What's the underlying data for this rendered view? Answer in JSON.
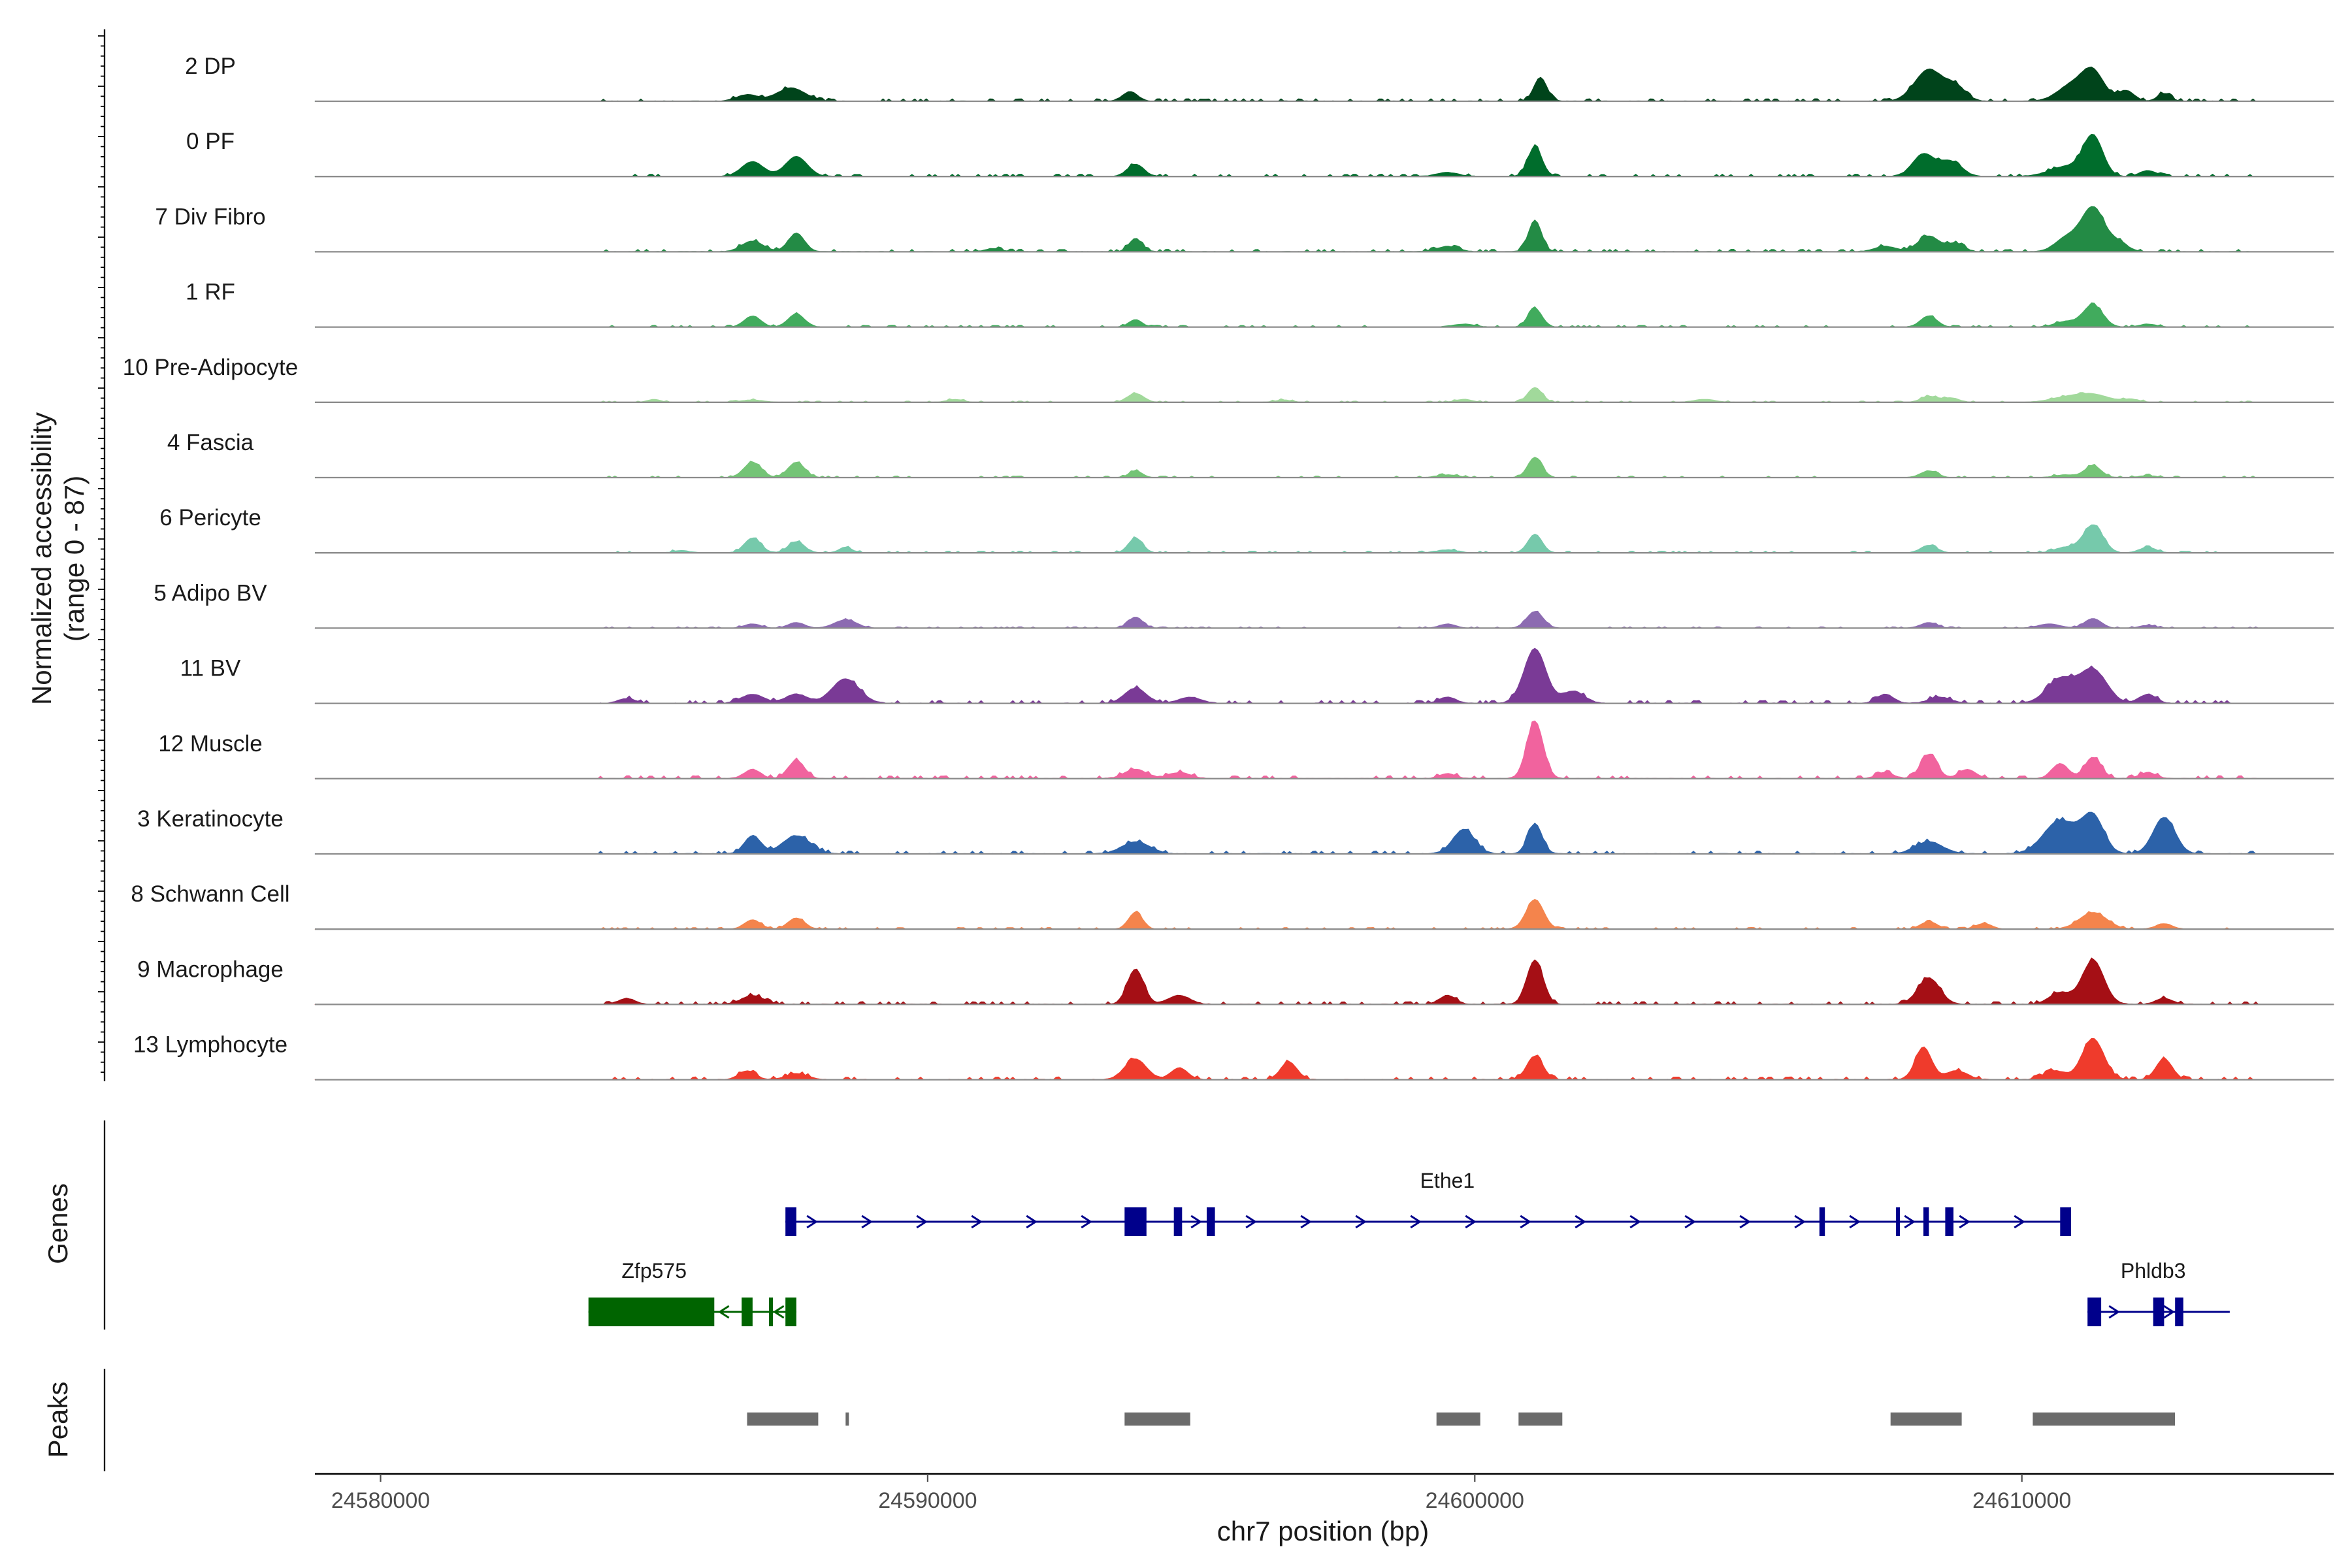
{
  "chart_data": {
    "type": "area",
    "title": "",
    "xlabel": "chr7 position (bp)",
    "ylabel": "Normalized accessibility (range 0 - 87)",
    "xlim": [
      24578800,
      24615700
    ],
    "ylim": [
      0,
      87
    ],
    "x_ticks": [
      24580000,
      24590000,
      24600000,
      24610000
    ],
    "x_tick_labels": [
      "24580000",
      "24590000",
      "24600000",
      "24610000"
    ],
    "panel_labels": {
      "genes": "Genes",
      "peaks": "Peaks"
    },
    "tracks": [
      {
        "name": "2 DP",
        "color": "#00441b",
        "scale": 0.85,
        "peaks": [
          [
            24586700,
            12,
            200
          ],
          [
            24587500,
            25,
            260
          ],
          [
            24593700,
            18,
            140
          ],
          [
            24601200,
            45,
            120
          ],
          [
            24608300,
            60,
            260
          ],
          [
            24608800,
            25,
            180
          ],
          [
            24610900,
            30,
            250
          ],
          [
            24611300,
            55,
            200
          ],
          [
            24611900,
            20,
            150
          ],
          [
            24612600,
            15,
            120
          ]
        ]
      },
      {
        "name": "0 PF",
        "color": "#006d2c",
        "scale": 0.8,
        "peaks": [
          [
            24586800,
            30,
            200
          ],
          [
            24587600,
            40,
            200
          ],
          [
            24593800,
            25,
            150
          ],
          [
            24599500,
            8,
            200
          ],
          [
            24601100,
            60,
            130
          ],
          [
            24608200,
            45,
            200
          ],
          [
            24608700,
            30,
            200
          ],
          [
            24611300,
            80,
            180
          ],
          [
            24610800,
            20,
            300
          ],
          [
            24612300,
            12,
            150
          ]
        ]
      },
      {
        "name": "7 Div Fibro",
        "color": "#238b45",
        "scale": 0.85,
        "peaks": [
          [
            24586800,
            20,
            200
          ],
          [
            24587600,
            35,
            150
          ],
          [
            24591200,
            6,
            150
          ],
          [
            24593800,
            25,
            120
          ],
          [
            24599500,
            10,
            200
          ],
          [
            24601100,
            60,
            120
          ],
          [
            24607500,
            10,
            200
          ],
          [
            24608300,
            30,
            200
          ],
          [
            24608800,
            15,
            150
          ],
          [
            24610800,
            25,
            200
          ],
          [
            24611300,
            85,
            220
          ],
          [
            24611800,
            15,
            150
          ]
        ]
      },
      {
        "name": "1 RF",
        "color": "#41ab5d",
        "scale": 0.6,
        "peaks": [
          [
            24586800,
            30,
            150
          ],
          [
            24587600,
            35,
            150
          ],
          [
            24593800,
            20,
            120
          ],
          [
            24599800,
            8,
            200
          ],
          [
            24601100,
            50,
            130
          ],
          [
            24608300,
            30,
            150
          ],
          [
            24610800,
            15,
            200
          ],
          [
            24611300,
            60,
            180
          ],
          [
            24612300,
            8,
            150
          ]
        ]
      },
      {
        "name": "10 Pre-Adipocyte",
        "color": "#a1d99b",
        "scale": 0.48,
        "peaks": [
          [
            24585000,
            10,
            120
          ],
          [
            24586800,
            8,
            200
          ],
          [
            24590500,
            10,
            150
          ],
          [
            24593800,
            30,
            150
          ],
          [
            24596500,
            8,
            150
          ],
          [
            24599800,
            10,
            150
          ],
          [
            24601100,
            50,
            130
          ],
          [
            24604200,
            10,
            200
          ],
          [
            24608300,
            20,
            150
          ],
          [
            24608700,
            15,
            150
          ],
          [
            24610800,
            15,
            300
          ],
          [
            24611300,
            25,
            300
          ],
          [
            24612000,
            10,
            150
          ]
        ]
      },
      {
        "name": "4 Fascia",
        "color": "#74c476",
        "scale": 0.55,
        "peaks": [
          [
            24586800,
            45,
            160
          ],
          [
            24587600,
            45,
            150
          ],
          [
            24593800,
            20,
            120
          ],
          [
            24599500,
            8,
            200
          ],
          [
            24601100,
            60,
            130
          ],
          [
            24608300,
            20,
            150
          ],
          [
            24610800,
            8,
            200
          ],
          [
            24611300,
            35,
            150
          ],
          [
            24612300,
            6,
            150
          ]
        ]
      },
      {
        "name": "6 Pericyte",
        "color": "#76c9ab",
        "scale": 0.6,
        "peaks": [
          [
            24585500,
            6,
            150
          ],
          [
            24586800,
            40,
            150
          ],
          [
            24587600,
            30,
            150
          ],
          [
            24588500,
            15,
            120
          ],
          [
            24593800,
            40,
            130
          ],
          [
            24599500,
            8,
            200
          ],
          [
            24601100,
            50,
            130
          ],
          [
            24608300,
            20,
            150
          ],
          [
            24610800,
            15,
            200
          ],
          [
            24611300,
            75,
            180
          ],
          [
            24612300,
            15,
            150
          ]
        ]
      },
      {
        "name": "5 Adipo BV",
        "color": "#8c6bb1",
        "scale": 0.45,
        "peaks": [
          [
            24586800,
            15,
            150
          ],
          [
            24587600,
            20,
            150
          ],
          [
            24588500,
            30,
            200
          ],
          [
            24593800,
            40,
            130
          ],
          [
            24599500,
            15,
            150
          ],
          [
            24601100,
            60,
            150
          ],
          [
            24608300,
            20,
            150
          ],
          [
            24610500,
            15,
            200
          ],
          [
            24611300,
            35,
            150
          ],
          [
            24612300,
            10,
            150
          ]
        ]
      },
      {
        "name": "11 BV",
        "color": "#7a3a96",
        "scale": 0.98,
        "peaks": [
          [
            24584500,
            8,
            150
          ],
          [
            24586800,
            15,
            200
          ],
          [
            24587600,
            15,
            200
          ],
          [
            24588500,
            40,
            250
          ],
          [
            24593800,
            25,
            200
          ],
          [
            24594800,
            10,
            200
          ],
          [
            24599500,
            10,
            150
          ],
          [
            24601100,
            90,
            200
          ],
          [
            24601800,
            20,
            200
          ],
          [
            24607500,
            15,
            150
          ],
          [
            24608500,
            10,
            200
          ],
          [
            24610700,
            40,
            250
          ],
          [
            24611300,
            55,
            250
          ],
          [
            24612300,
            15,
            150
          ]
        ]
      },
      {
        "name": "12 Muscle",
        "color": "#f1639e",
        "scale": 0.98,
        "peaks": [
          [
            24586800,
            15,
            150
          ],
          [
            24587600,
            30,
            150
          ],
          [
            24593800,
            15,
            200
          ],
          [
            24594600,
            10,
            200
          ],
          [
            24599500,
            8,
            150
          ],
          [
            24601100,
            95,
            150
          ],
          [
            24607500,
            10,
            150
          ],
          [
            24608300,
            40,
            150
          ],
          [
            24609000,
            15,
            150
          ],
          [
            24610700,
            25,
            150
          ],
          [
            24611300,
            35,
            150
          ],
          [
            24612300,
            10,
            150
          ]
        ]
      },
      {
        "name": "3 Keratinocyte",
        "color": "#2c62a9",
        "scale": 0.98,
        "peaks": [
          [
            24586800,
            30,
            150
          ],
          [
            24587600,
            30,
            250
          ],
          [
            24593800,
            20,
            250
          ],
          [
            24599800,
            40,
            200
          ],
          [
            24601100,
            50,
            130
          ],
          [
            24608300,
            20,
            250
          ],
          [
            24610700,
            55,
            300
          ],
          [
            24611300,
            60,
            200
          ],
          [
            24612600,
            60,
            200
          ]
        ]
      },
      {
        "name": "8 Schwann Cell",
        "color": "#f4844c",
        "scale": 0.6,
        "peaks": [
          [
            24586800,
            25,
            150
          ],
          [
            24587600,
            30,
            150
          ],
          [
            24593800,
            45,
            130
          ],
          [
            24601100,
            80,
            160
          ],
          [
            24608300,
            20,
            150
          ],
          [
            24609300,
            15,
            150
          ],
          [
            24611300,
            45,
            250
          ],
          [
            24612600,
            15,
            150
          ]
        ]
      },
      {
        "name": "9 Macrophage",
        "color": "#a50f15",
        "scale": 0.95,
        "peaks": [
          [
            24584500,
            10,
            150
          ],
          [
            24586800,
            15,
            200
          ],
          [
            24593800,
            60,
            150
          ],
          [
            24594600,
            15,
            200
          ],
          [
            24599500,
            15,
            150
          ],
          [
            24601100,
            75,
            150
          ],
          [
            24608300,
            45,
            200
          ],
          [
            24610700,
            20,
            200
          ],
          [
            24611300,
            75,
            200
          ],
          [
            24612600,
            10,
            150
          ]
        ]
      },
      {
        "name": "13 Lymphocyte",
        "color": "#ef3b2c",
        "scale": 0.95,
        "peaks": [
          [
            24586700,
            15,
            150
          ],
          [
            24587600,
            10,
            200
          ],
          [
            24593800,
            35,
            200
          ],
          [
            24594600,
            20,
            150
          ],
          [
            24596600,
            30,
            150
          ],
          [
            24601100,
            40,
            150
          ],
          [
            24608200,
            55,
            150
          ],
          [
            24608800,
            15,
            200
          ],
          [
            24610600,
            15,
            200
          ],
          [
            24611300,
            70,
            200
          ],
          [
            24612600,
            35,
            150
          ]
        ]
      }
    ],
    "genes": [
      {
        "name": "Ethe1",
        "strand": "+",
        "color": "#00008b",
        "row": 1,
        "start": 24587400,
        "end": 24610900,
        "label_pos": 24599500,
        "exons": [
          [
            24587400,
            24587600,
            "wide"
          ],
          [
            24593600,
            24594000,
            "wide"
          ],
          [
            24594500,
            24594650,
            "wide"
          ],
          [
            24595100,
            24595250,
            "wide"
          ],
          [
            24606300,
            24606400,
            "narrow"
          ],
          [
            24607700,
            24607760,
            "narrow"
          ],
          [
            24608200,
            24608300,
            "narrow"
          ],
          [
            24608600,
            24608750,
            "wide"
          ],
          [
            24610700,
            24610900,
            "wide"
          ]
        ]
      },
      {
        "name": "Zfp575",
        "strand": "-",
        "color": "#006400",
        "row": 2,
        "start": 24583800,
        "end": 24587600,
        "label_pos": 24585000,
        "exons": [
          [
            24583800,
            24586100,
            "wide"
          ],
          [
            24586600,
            24586800,
            "wide"
          ],
          [
            24587100,
            24587160,
            "narrow"
          ],
          [
            24587400,
            24587600,
            "wide"
          ]
        ]
      },
      {
        "name": "Phldb3",
        "strand": "+",
        "color": "#00008b",
        "row": 2,
        "start": 24611200,
        "end": 24613800,
        "label_pos": 24612400,
        "exons": [
          [
            24611200,
            24611450,
            "wide"
          ],
          [
            24612400,
            24612600,
            "wide"
          ],
          [
            24612800,
            24612950,
            "wide"
          ]
        ]
      }
    ],
    "peak_regions": [
      [
        24586700,
        24588000
      ],
      [
        24588500,
        24588560
      ],
      [
        24593600,
        24594800
      ],
      [
        24599300,
        24600100
      ],
      [
        24600800,
        24601600
      ],
      [
        24607600,
        24608900
      ],
      [
        24610200,
        24612800
      ]
    ]
  }
}
